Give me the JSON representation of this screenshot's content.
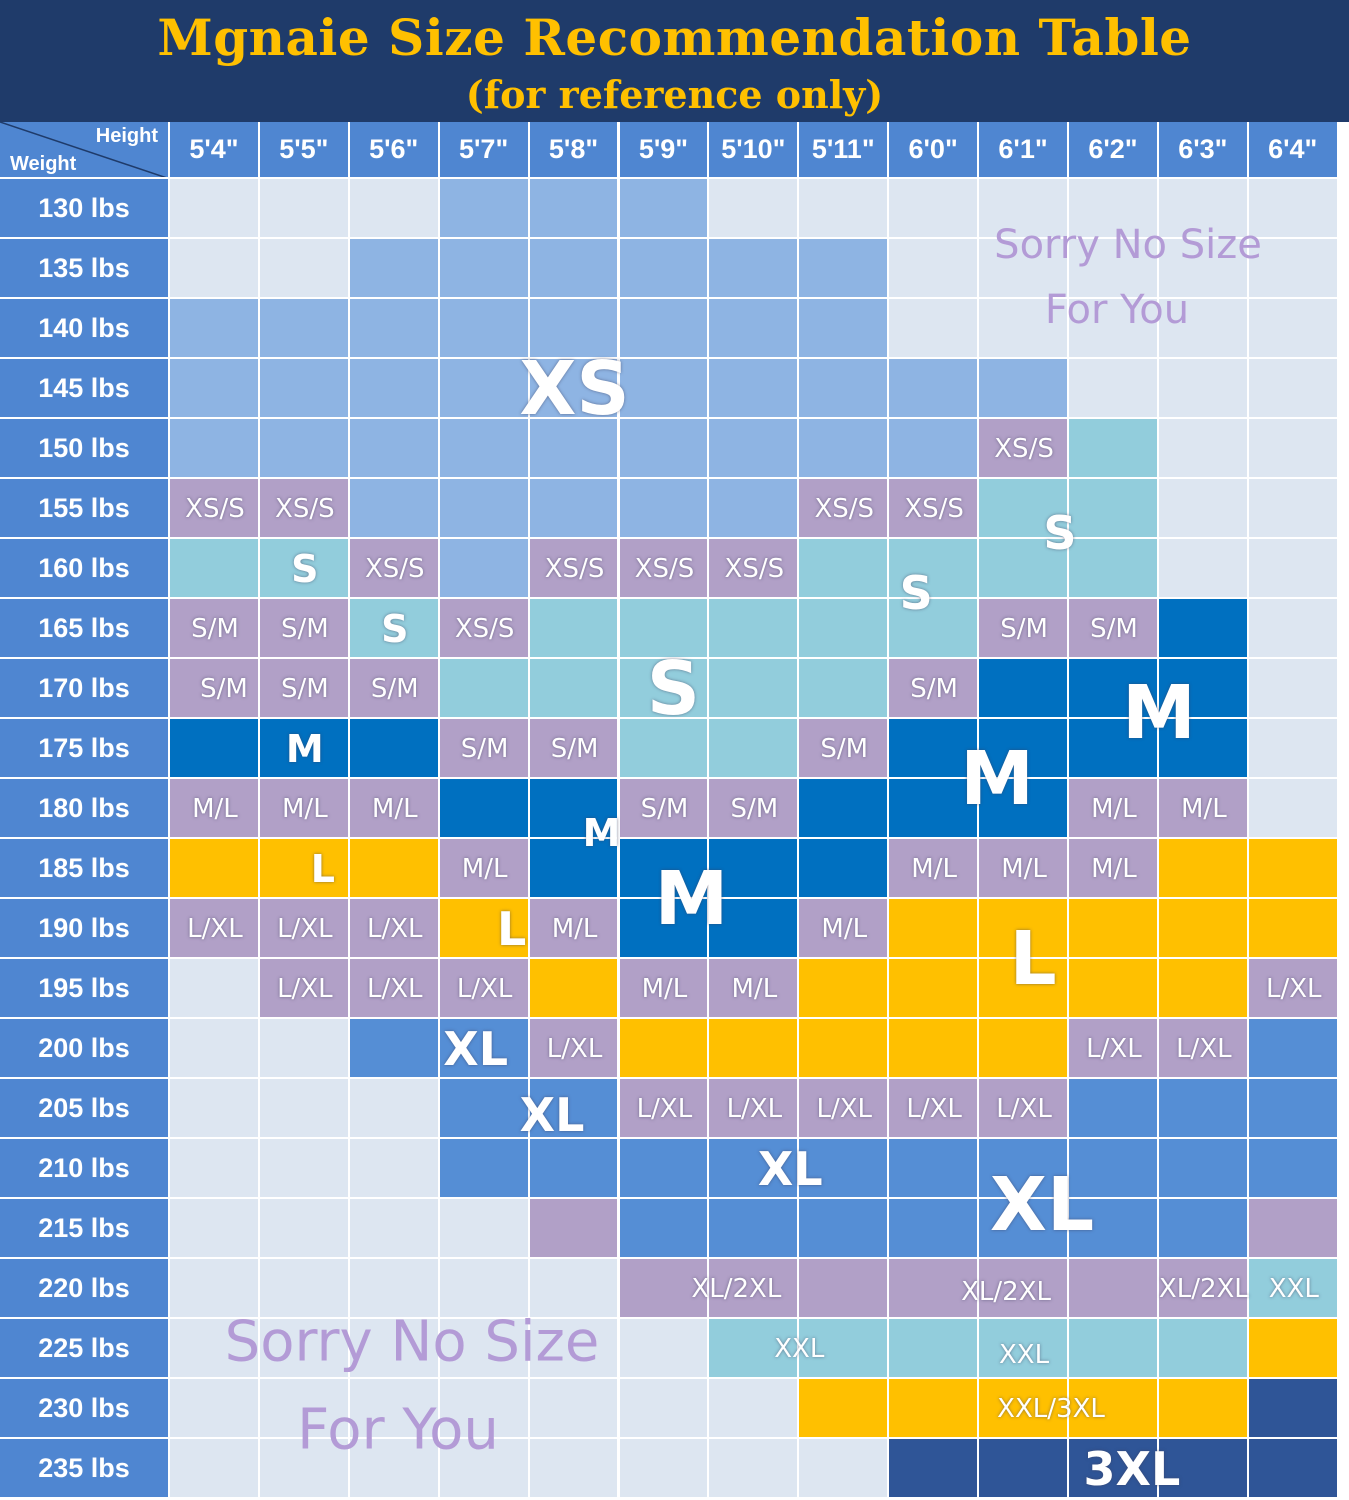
{
  "title": "Mgnaie Size Recommendation Table",
  "subtitle": "(for reference only)",
  "corner": {
    "height_label": "Height",
    "weight_label": "Weight"
  },
  "colors": {
    "header_bg": "#4f86d1",
    "title_bg": "#1f3b6a",
    "title_text": "#ffc000",
    "empty": "#dde6f1",
    "XS": "#8eb4e3",
    "XS/S": "#b1a0c7",
    "S": "#92cddc",
    "S/M": "#b1a0c7",
    "M": "#0070c0",
    "M/L": "#b1a0c7",
    "L": "#ffc000",
    "L/XL": "#b1a0c7",
    "XL": "#558ed5",
    "XL/2XL": "#b1a0c7",
    "XXL": "#92cddc",
    "XXL/3XL": "#ffc000",
    "3XL": "#2f5597",
    "sorry_text": "#b39bd6"
  },
  "chart_data": {
    "type": "table",
    "heights": [
      "5'4\"",
      "5'5\"",
      "5'6\"",
      "5'7\"",
      "5'8\"",
      "5'9\"",
      "5'10\"",
      "5'11\"",
      "6'0\"",
      "6'1\"",
      "6'2\"",
      "6'3\"",
      "6'4\""
    ],
    "weights": [
      "130 lbs",
      "135 lbs",
      "140 lbs",
      "145 lbs",
      "150 lbs",
      "155 lbs",
      "160 lbs",
      "165 lbs",
      "170 lbs",
      "175 lbs",
      "180 lbs",
      "185 lbs",
      "190 lbs",
      "195 lbs",
      "200 lbs",
      "205 lbs",
      "210 lbs",
      "215 lbs",
      "220 lbs",
      "225 lbs",
      "230 lbs",
      "235 lbs"
    ],
    "sizes": [
      [
        "",
        "",
        "",
        "XS",
        "XS",
        "XS",
        "",
        "",
        "",
        "",
        "",
        "",
        ""
      ],
      [
        "",
        "",
        "XS",
        "XS",
        "XS",
        "XS",
        "XS",
        "XS",
        "",
        "",
        "",
        "",
        ""
      ],
      [
        "XS",
        "XS",
        "XS",
        "XS",
        "XS",
        "XS",
        "XS",
        "XS",
        "",
        "",
        "",
        "",
        ""
      ],
      [
        "XS",
        "XS",
        "XS",
        "XS",
        "XS",
        "XS",
        "XS",
        "XS",
        "XS",
        "XS",
        "",
        "",
        ""
      ],
      [
        "XS",
        "XS",
        "XS",
        "XS",
        "XS",
        "XS",
        "XS",
        "XS",
        "XS",
        "XS/S",
        "S",
        "",
        ""
      ],
      [
        "XS/S",
        "XS/S",
        "XS",
        "XS",
        "XS",
        "XS",
        "XS",
        "XS/S",
        "XS/S",
        "S",
        "S",
        "",
        ""
      ],
      [
        "S",
        "S",
        "XS/S",
        "XS",
        "XS/S",
        "XS/S",
        "XS/S",
        "S",
        "S",
        "S",
        "S",
        "",
        ""
      ],
      [
        "S/M",
        "S/M",
        "S",
        "XS/S",
        "S",
        "S",
        "S",
        "S",
        "S",
        "S/M",
        "S/M",
        "M",
        ""
      ],
      [
        "S/M",
        "S/M",
        "S/M",
        "S",
        "S",
        "S",
        "S",
        "S",
        "S/M",
        "M",
        "M",
        "M",
        ""
      ],
      [
        "M",
        "M",
        "M",
        "S/M",
        "S/M",
        "S",
        "S",
        "S/M",
        "M",
        "M",
        "M",
        "M",
        ""
      ],
      [
        "M/L",
        "M/L",
        "M/L",
        "M",
        "M",
        "S/M",
        "S/M",
        "M",
        "M",
        "M",
        "M/L",
        "M/L",
        ""
      ],
      [
        "L",
        "L",
        "L",
        "M/L",
        "M",
        "M",
        "M",
        "M",
        "M/L",
        "M/L",
        "M/L",
        "L",
        "L"
      ],
      [
        "L/XL",
        "L/XL",
        "L/XL",
        "L",
        "M/L",
        "M",
        "M",
        "M/L",
        "L",
        "L",
        "L",
        "L",
        "L"
      ],
      [
        "",
        "L/XL",
        "L/XL",
        "L/XL",
        "L",
        "M/L",
        "M/L",
        "L",
        "L",
        "L",
        "L",
        "L",
        "L/XL"
      ],
      [
        "",
        "",
        "XL",
        "XL",
        "L/XL",
        "L",
        "L",
        "L",
        "L",
        "L",
        "L/XL",
        "L/XL",
        "XL"
      ],
      [
        "",
        "",
        "",
        "XL",
        "XL",
        "L/XL",
        "L/XL",
        "L/XL",
        "L/XL",
        "L/XL",
        "XL",
        "XL",
        "XL"
      ],
      [
        "",
        "",
        "",
        "XL",
        "XL",
        "XL",
        "XL",
        "XL",
        "XL",
        "XL",
        "XL",
        "XL",
        "XL"
      ],
      [
        "",
        "",
        "",
        "",
        "XL/2XL",
        "XL",
        "XL",
        "XL",
        "XL",
        "XL",
        "XL",
        "XL",
        "XL/2XL"
      ],
      [
        "",
        "",
        "",
        "",
        "",
        "XL/2XL",
        "XL/2XL",
        "XL/2XL",
        "XL/2XL",
        "XL/2XL",
        "XL/2XL",
        "XL/2XL",
        "XXL"
      ],
      [
        "",
        "",
        "",
        "",
        "",
        "",
        "XXL",
        "XXL",
        "XXL",
        "XXL",
        "XXL",
        "XXL",
        "XXL/3XL"
      ],
      [
        "",
        "",
        "",
        "",
        "",
        "",
        "",
        "XXL/3XL",
        "XXL/3XL",
        "XXL/3XL",
        "XXL/3XL",
        "XXL/3XL",
        "3XL"
      ],
      [
        "",
        "",
        "",
        "",
        "",
        "",
        "",
        "",
        "3XL",
        "3XL",
        "3XL",
        "3XL",
        "3XL"
      ]
    ],
    "labels": [
      {
        "text": "XS",
        "row": 3,
        "col": 4,
        "size": "big"
      },
      {
        "text": "XS/S",
        "row": 4,
        "col": 9,
        "size": "small"
      },
      {
        "text": "XS/S",
        "row": 5,
        "col": 0,
        "size": "small"
      },
      {
        "text": "XS/S",
        "row": 5,
        "col": 1,
        "size": "small"
      },
      {
        "text": "XS/S",
        "row": 5,
        "col": 7,
        "size": "small"
      },
      {
        "text": "XS/S",
        "row": 5,
        "col": 8,
        "size": "small"
      },
      {
        "text": "S",
        "row": 5.4,
        "col": 9.4,
        "size": "mid"
      },
      {
        "text": "S",
        "row": 6,
        "col": 1,
        "size": "medium"
      },
      {
        "text": "XS/S",
        "row": 6,
        "col": 2,
        "size": "small"
      },
      {
        "text": "XS/S",
        "row": 6,
        "col": 4,
        "size": "small"
      },
      {
        "text": "XS/S",
        "row": 6,
        "col": 5,
        "size": "small"
      },
      {
        "text": "XS/S",
        "row": 6,
        "col": 6,
        "size": "small"
      },
      {
        "text": "S",
        "row": 6.4,
        "col": 7.8,
        "size": "mid"
      },
      {
        "text": "S/M",
        "row": 7,
        "col": 0,
        "size": "small"
      },
      {
        "text": "S/M",
        "row": 7,
        "col": 1,
        "size": "small"
      },
      {
        "text": "S",
        "row": 7,
        "col": 2,
        "size": "medium"
      },
      {
        "text": "XS/S",
        "row": 7,
        "col": 3,
        "size": "small"
      },
      {
        "text": "S/M",
        "row": 7,
        "col": 9,
        "size": "small"
      },
      {
        "text": "S/M",
        "row": 7,
        "col": 10,
        "size": "small"
      },
      {
        "text": "S",
        "row": 8,
        "col": 5.1,
        "size": "big"
      },
      {
        "text": "S/M",
        "row": 8,
        "col": 0.1,
        "size": "small"
      },
      {
        "text": "S/M",
        "row": 8,
        "col": 1,
        "size": "small"
      },
      {
        "text": "S/M",
        "row": 8,
        "col": 2,
        "size": "small"
      },
      {
        "text": "S/M",
        "row": 8,
        "col": 8,
        "size": "small"
      },
      {
        "text": "M",
        "row": 8.4,
        "col": 10.5,
        "size": "big"
      },
      {
        "text": "M",
        "row": 9,
        "col": 1,
        "size": "medium"
      },
      {
        "text": "S/M",
        "row": 9,
        "col": 3,
        "size": "small"
      },
      {
        "text": "S/M",
        "row": 9,
        "col": 4,
        "size": "small"
      },
      {
        "text": "S/M",
        "row": 9,
        "col": 7,
        "size": "small"
      },
      {
        "text": "M",
        "row": 9.5,
        "col": 8.7,
        "size": "big"
      },
      {
        "text": "M/L",
        "row": 10,
        "col": 0,
        "size": "small"
      },
      {
        "text": "M/L",
        "row": 10,
        "col": 1,
        "size": "small"
      },
      {
        "text": "M/L",
        "row": 10,
        "col": 2,
        "size": "small"
      },
      {
        "text": "M",
        "row": 10.4,
        "col": 4.3,
        "size": "medium"
      },
      {
        "text": "S/M",
        "row": 10,
        "col": 5,
        "size": "small"
      },
      {
        "text": "S/M",
        "row": 10,
        "col": 6,
        "size": "small"
      },
      {
        "text": "M/L",
        "row": 10,
        "col": 10,
        "size": "small"
      },
      {
        "text": "M/L",
        "row": 10,
        "col": 11,
        "size": "small"
      },
      {
        "text": "L",
        "row": 11,
        "col": 1.2,
        "size": "medium"
      },
      {
        "text": "M/L",
        "row": 11,
        "col": 3,
        "size": "small"
      },
      {
        "text": "M/L",
        "row": 11,
        "col": 8,
        "size": "small"
      },
      {
        "text": "M/L",
        "row": 11,
        "col": 9,
        "size": "small"
      },
      {
        "text": "M/L",
        "row": 11,
        "col": 10,
        "size": "small"
      },
      {
        "text": "M",
        "row": 11.5,
        "col": 5.3,
        "size": "big"
      },
      {
        "text": "L/XL",
        "row": 12,
        "col": 0,
        "size": "small"
      },
      {
        "text": "L/XL",
        "row": 12,
        "col": 1,
        "size": "small"
      },
      {
        "text": "L/XL",
        "row": 12,
        "col": 2,
        "size": "small"
      },
      {
        "text": "L",
        "row": 12,
        "col": 3.3,
        "size": "mid"
      },
      {
        "text": "M/L",
        "row": 12,
        "col": 4,
        "size": "small"
      },
      {
        "text": "M/L",
        "row": 12,
        "col": 7,
        "size": "small"
      },
      {
        "text": "L",
        "row": 12.5,
        "col": 9.1,
        "size": "big"
      },
      {
        "text": "L/XL",
        "row": 13,
        "col": 1,
        "size": "small"
      },
      {
        "text": "L/XL",
        "row": 13,
        "col": 2,
        "size": "small"
      },
      {
        "text": "L/XL",
        "row": 13,
        "col": 3,
        "size": "small"
      },
      {
        "text": "M/L",
        "row": 13,
        "col": 5,
        "size": "small"
      },
      {
        "text": "M/L",
        "row": 13,
        "col": 6,
        "size": "small"
      },
      {
        "text": "L/XL",
        "row": 13,
        "col": 12,
        "size": "small"
      },
      {
        "text": "XL",
        "row": 14,
        "col": 2.9,
        "size": "mid"
      },
      {
        "text": "L/XL",
        "row": 14,
        "col": 4,
        "size": "small"
      },
      {
        "text": "L/XL",
        "row": 14,
        "col": 10,
        "size": "small"
      },
      {
        "text": "L/XL",
        "row": 14,
        "col": 11,
        "size": "small"
      },
      {
        "text": "XL",
        "row": 15.1,
        "col": 3.75,
        "size": "mid"
      },
      {
        "text": "L/XL",
        "row": 15,
        "col": 5,
        "size": "small"
      },
      {
        "text": "L/XL",
        "row": 15,
        "col": 6,
        "size": "small"
      },
      {
        "text": "L/XL",
        "row": 15,
        "col": 7,
        "size": "small"
      },
      {
        "text": "L/XL",
        "row": 15,
        "col": 8,
        "size": "small"
      },
      {
        "text": "L/XL",
        "row": 15,
        "col": 9,
        "size": "small"
      },
      {
        "text": "XL",
        "row": 16,
        "col": 6.4,
        "size": "mid"
      },
      {
        "text": "XL",
        "row": 16.6,
        "col": 9.2,
        "size": "big"
      },
      {
        "text": "XL/2XL",
        "row": 18,
        "col": 5.8,
        "size": "small"
      },
      {
        "text": "XL/2XL",
        "row": 18.05,
        "col": 8.8,
        "size": "small"
      },
      {
        "text": "XL/2XL",
        "row": 18,
        "col": 11.0,
        "size": "small"
      },
      {
        "text": "XXL",
        "row": 18,
        "col": 12,
        "size": "small"
      },
      {
        "text": "XXL",
        "row": 19,
        "col": 6.5,
        "size": "small"
      },
      {
        "text": "XXL",
        "row": 19.1,
        "col": 9.0,
        "size": "small"
      },
      {
        "text": "XXL/3XL",
        "row": 20,
        "col": 9.3,
        "size": "small"
      },
      {
        "text": "3XL",
        "row": 21,
        "col": 10.2,
        "size": "mid"
      }
    ],
    "no_size_notes": [
      {
        "line1": "Sorry No Size",
        "line2": "For You",
        "position": "top-right"
      },
      {
        "line1": "Sorry No Size",
        "line2": "For You",
        "position": "bottom-left"
      }
    ]
  }
}
